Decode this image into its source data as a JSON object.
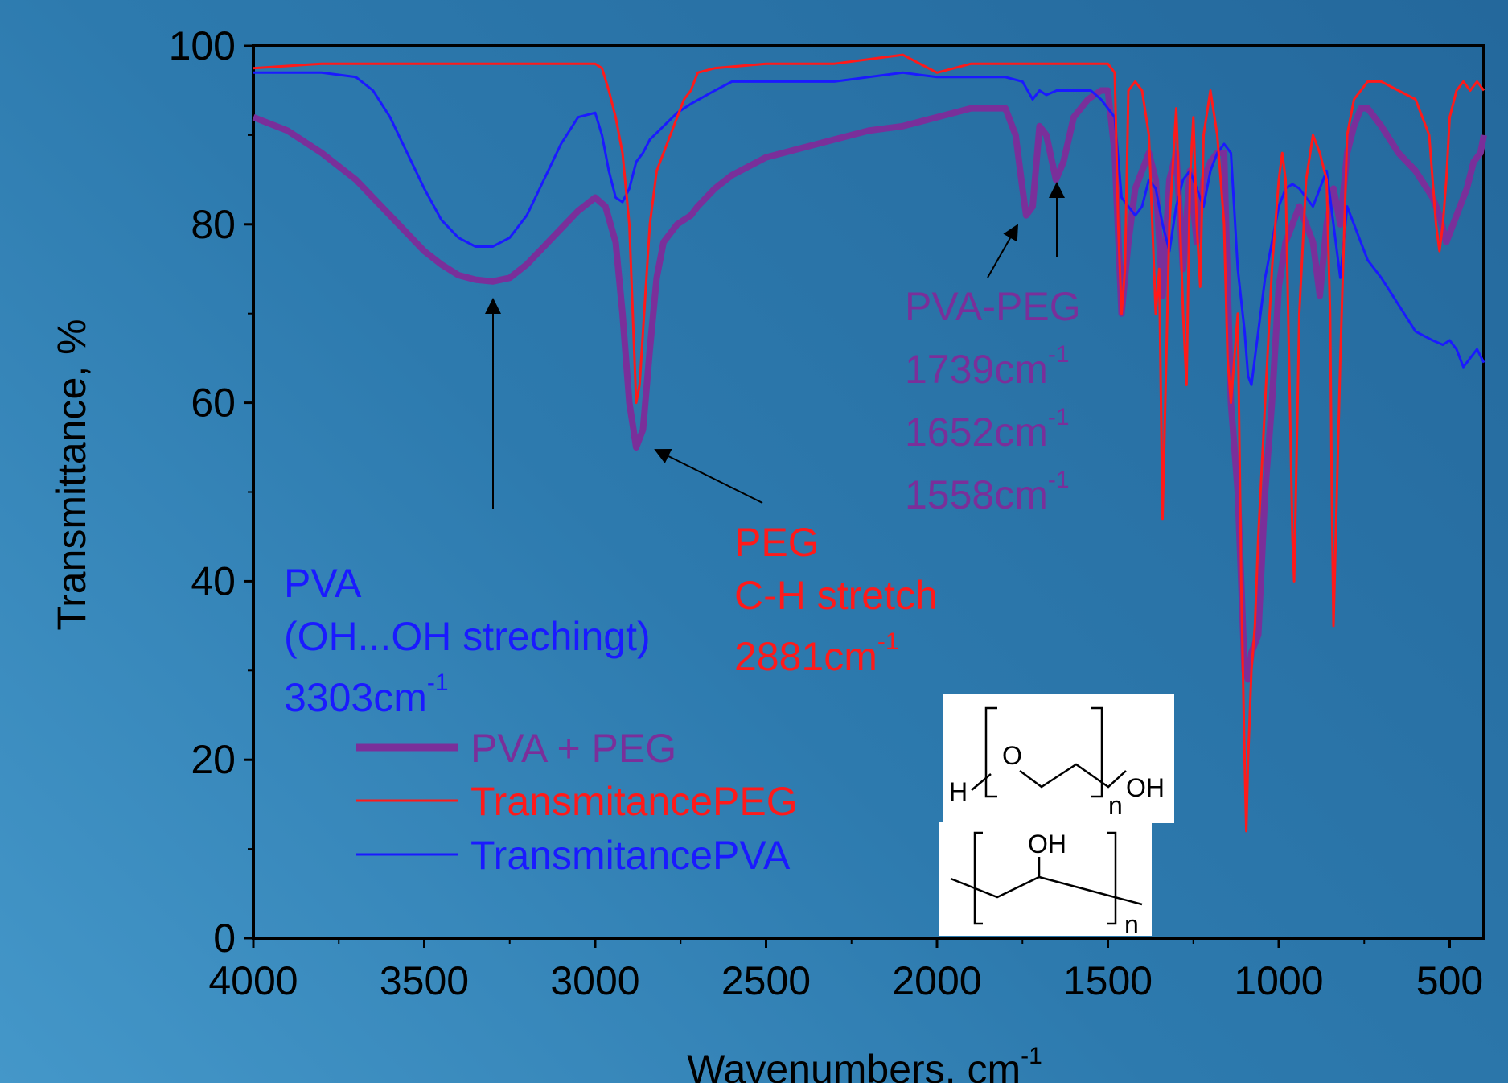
{
  "chart_data": {
    "type": "line",
    "title": "",
    "xlabel": "Wavenumbers, cm",
    "xlabel_sup": "-1",
    "ylabel": "Transmittance, %",
    "xlim": [
      4000,
      400
    ],
    "ylim": [
      0,
      100
    ],
    "x_ticks": [
      4000,
      3500,
      3000,
      2500,
      2000,
      1500,
      1000,
      500
    ],
    "y_ticks": [
      0,
      20,
      40,
      60,
      80,
      100
    ],
    "grid": false,
    "legend_position": "lower-left",
    "series": [
      {
        "name": "PVA + PEG",
        "color": "#7a2f9a",
        "x": [
          4000,
          3900,
          3800,
          3700,
          3600,
          3500,
          3450,
          3400,
          3350,
          3300,
          3250,
          3200,
          3150,
          3100,
          3050,
          3000,
          2970,
          2940,
          2920,
          2900,
          2880,
          2860,
          2840,
          2820,
          2800,
          2760,
          2720,
          2700,
          2650,
          2600,
          2500,
          2400,
          2300,
          2200,
          2100,
          2000,
          1900,
          1800,
          1770,
          1750,
          1739,
          1720,
          1700,
          1680,
          1652,
          1630,
          1600,
          1558,
          1520,
          1500,
          1480,
          1460,
          1440,
          1420,
          1400,
          1380,
          1360,
          1340,
          1320,
          1300,
          1280,
          1260,
          1240,
          1220,
          1200,
          1180,
          1160,
          1140,
          1120,
          1100,
          1090,
          1080,
          1060,
          1040,
          1020,
          1000,
          980,
          960,
          940,
          920,
          900,
          880,
          860,
          840,
          820,
          800,
          780,
          760,
          740,
          700,
          650,
          600,
          550,
          530,
          510,
          490,
          470,
          450,
          430,
          410,
          400
        ],
        "y": [
          92,
          90.5,
          88,
          85,
          81,
          77,
          75.5,
          74.3,
          73.8,
          73.6,
          74,
          75.5,
          77.5,
          79.5,
          81.5,
          83,
          82,
          78,
          70,
          60,
          55,
          57,
          66,
          74,
          78,
          80,
          81,
          82,
          84,
          85.5,
          87.5,
          88.5,
          89.5,
          90.5,
          91,
          92,
          93,
          93,
          90,
          84,
          81,
          82,
          91,
          90,
          85,
          87,
          92,
          94,
          95,
          95,
          88,
          70,
          78,
          84,
          86,
          88,
          85,
          72,
          85,
          88,
          75,
          86,
          78,
          85,
          87,
          88,
          88,
          60,
          50,
          30,
          29,
          32,
          34,
          50,
          60,
          73,
          78,
          80,
          82,
          80,
          78,
          72,
          80,
          84,
          80,
          88,
          91,
          93,
          93,
          91,
          88,
          86,
          83,
          81,
          78,
          80,
          82,
          84,
          87,
          88,
          90
        ]
      },
      {
        "name": "TransmitancePEG",
        "color": "#ff1a1a",
        "x": [
          4000,
          3800,
          3600,
          3400,
          3200,
          3000,
          2980,
          2960,
          2940,
          2920,
          2900,
          2880,
          2870,
          2860,
          2840,
          2820,
          2800,
          2780,
          2760,
          2740,
          2720,
          2700,
          2650,
          2500,
          2300,
          2100,
          2000,
          1900,
          1800,
          1600,
          1500,
          1480,
          1470,
          1460,
          1450,
          1440,
          1420,
          1400,
          1380,
          1360,
          1350,
          1340,
          1320,
          1300,
          1280,
          1270,
          1260,
          1250,
          1240,
          1230,
          1220,
          1200,
          1180,
          1160,
          1150,
          1140,
          1120,
          1110,
          1100,
          1095,
          1090,
          1080,
          1070,
          1060,
          1040,
          1020,
          1000,
          990,
          980,
          960,
          955,
          950,
          940,
          920,
          900,
          880,
          860,
          850,
          845,
          840,
          820,
          800,
          780,
          760,
          740,
          700,
          650,
          600,
          560,
          540,
          530,
          520,
          510,
          500,
          480,
          460,
          440,
          420,
          400
        ],
        "y": [
          97.5,
          98,
          98,
          98,
          98,
          98,
          97.5,
          95,
          92,
          88,
          80,
          60,
          62,
          68,
          80,
          86,
          88,
          90,
          92,
          94,
          95,
          97,
          97.5,
          98,
          98,
          99,
          97,
          98,
          98,
          98,
          98,
          97,
          80,
          70,
          75,
          95,
          96,
          95,
          90,
          70,
          75,
          47,
          80,
          93,
          70,
          62,
          85,
          92,
          80,
          73,
          90,
          95,
          90,
          80,
          65,
          60,
          70,
          40,
          20,
          12,
          20,
          30,
          35,
          45,
          60,
          75,
          85,
          88,
          85,
          45,
          40,
          50,
          70,
          85,
          90,
          88,
          85,
          70,
          50,
          35,
          65,
          90,
          94,
          95,
          96,
          96,
          95,
          94,
          90,
          80,
          77,
          80,
          85,
          92,
          95,
          96,
          95,
          96,
          95
        ]
      },
      {
        "name": "TransmitancePVA",
        "color": "#1a1aff",
        "x": [
          4000,
          3900,
          3800,
          3700,
          3650,
          3600,
          3550,
          3500,
          3450,
          3400,
          3350,
          3300,
          3250,
          3200,
          3150,
          3100,
          3050,
          3000,
          2980,
          2960,
          2940,
          2920,
          2900,
          2880,
          2860,
          2840,
          2800,
          2760,
          2720,
          2650,
          2600,
          2500,
          2400,
          2300,
          2200,
          2100,
          2000,
          1900,
          1800,
          1750,
          1720,
          1700,
          1680,
          1650,
          1620,
          1600,
          1550,
          1520,
          1500,
          1480,
          1460,
          1440,
          1420,
          1400,
          1380,
          1360,
          1340,
          1320,
          1300,
          1280,
          1260,
          1240,
          1220,
          1200,
          1180,
          1160,
          1140,
          1120,
          1100,
          1090,
          1080,
          1060,
          1040,
          1020,
          1000,
          980,
          960,
          940,
          920,
          900,
          880,
          860,
          840,
          820,
          800,
          780,
          760,
          740,
          700,
          650,
          600,
          550,
          520,
          500,
          480,
          460,
          440,
          420,
          400
        ],
        "y": [
          97,
          97,
          97,
          96.5,
          95,
          92,
          88,
          84,
          80.5,
          78.5,
          77.5,
          77.5,
          78.5,
          81,
          85,
          89,
          92,
          92.5,
          90,
          86,
          83,
          82.5,
          84,
          87,
          88,
          89.5,
          91,
          92.5,
          93.5,
          95,
          96,
          96,
          96,
          96,
          96.5,
          97,
          96.5,
          96.5,
          96.5,
          96,
          94,
          95,
          94.5,
          95,
          95,
          95,
          95,
          94,
          93,
          92,
          83,
          82,
          81,
          82,
          85,
          84,
          80,
          77,
          82,
          85,
          86,
          84,
          82,
          86,
          88,
          89,
          88,
          75,
          68,
          63,
          62,
          68,
          74,
          78,
          82,
          84,
          84.5,
          84,
          83,
          82,
          84,
          86,
          80,
          74,
          82,
          80,
          78,
          76,
          74,
          71,
          68,
          67,
          66.5,
          67,
          66,
          64,
          65,
          66,
          64.5
        ]
      }
    ],
    "annotations": [
      {
        "lines": [
          "PVA",
          "(OH...OH strechingt)",
          "3303cm"
        ],
        "sup": "-1",
        "color": "#1a1aff"
      },
      {
        "lines": [
          "PEG",
          "C-H stretch",
          "2881cm"
        ],
        "sup": "-1",
        "color": "#ff1a1a"
      },
      {
        "lines": [
          "PVA-PEG",
          "1739cm",
          "1652cm",
          "1558cm"
        ],
        "sup": "-1",
        "color": "#7a2f9a"
      }
    ],
    "structures": {
      "peg": {
        "h": "H",
        "o": "O",
        "oh": "OH",
        "n": "n"
      },
      "pva": {
        "oh": "OH",
        "n": "n"
      }
    }
  }
}
